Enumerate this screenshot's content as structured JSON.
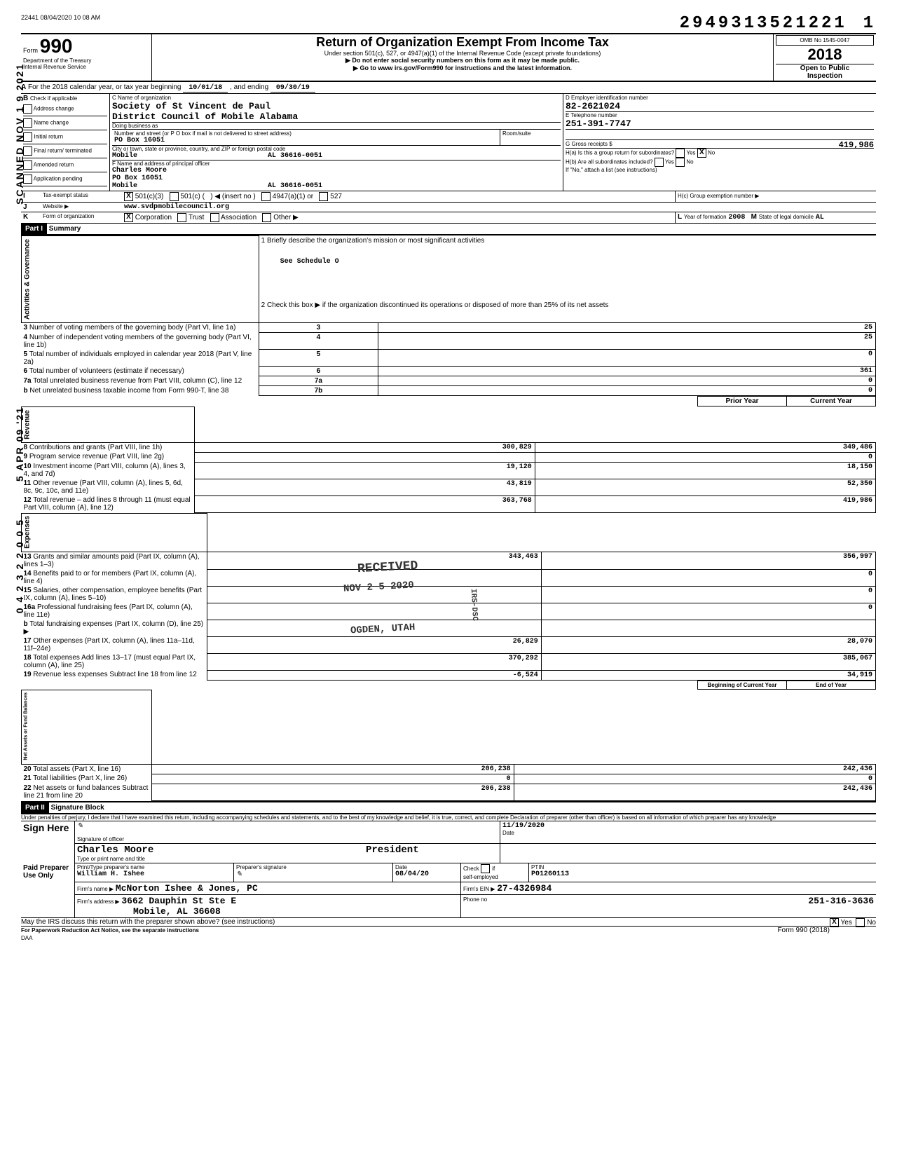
{
  "header": {
    "batch": "22441 08/04/2020 10 08 AM",
    "dln": "2949313521221",
    "dln_suffix": "1",
    "form_label": "Form",
    "form_number": "990",
    "title": "Return of Organization Exempt From Income Tax",
    "subtitle": "Under section 501(c), 527, or 4947(a)(1) of the Internal Revenue Code (except private foundations)",
    "warn1": "▶ Do not enter social security numbers on this form as it may be made public.",
    "warn2": "▶ Go to www irs.gov/Form990 for instructions and the latest information.",
    "dept": "Department of the Treasury",
    "irs": "Internal Revenue Service",
    "omb": "OMB No 1545-0047",
    "year": "2018",
    "open": "Open to Public",
    "inspection": "Inspection"
  },
  "sideStamps": {
    "scanned": "SCANNED NOV 1 9 2021",
    "apr": "5 APR 09 '21",
    "efile": "0 4 2 3 2 2 0 0 5"
  },
  "sectionA": {
    "label": "A",
    "text_prefix": "For the 2018 calendar year, or tax year beginning",
    "begin": "10/01/18",
    "mid": ", and ending",
    "end": "09/30/19"
  },
  "sectionB": {
    "label": "B",
    "check_label": "Check if applicable",
    "opts": [
      "Address change",
      "Name change",
      "Initial return",
      "Final return/ terminated",
      "Amended return",
      "Application pending"
    ]
  },
  "sectionC": {
    "label_name": "C Name of organization",
    "org_name": "Society of St Vincent de Paul",
    "org_name2": "District Council of Mobile Alabama",
    "dba_label": "Doing business as",
    "street_label": "Number and street (or P O box if mail is not delivered to street address)",
    "street": "PO Box 16051",
    "room_label": "Room/suite",
    "city_label": "City or town, state or province, country, and ZIP or foreign postal code",
    "city": "Mobile",
    "citystate": "AL 36616-0051"
  },
  "sectionD": {
    "label": "D Employer identification number",
    "ein": "82-2621024"
  },
  "sectionE": {
    "label": "E Telephone number",
    "phone": "251-391-7747"
  },
  "sectionF": {
    "label": "F Name and address of principal officer",
    "name": "Charles Moore",
    "addr1": "PO Box 16051",
    "addr2": "Mobile",
    "addr_state": "AL 36616-0051"
  },
  "sectionG": {
    "label": "G Gross receipts $",
    "val": "419,986"
  },
  "sectionH": {
    "a": "H(a) Is this a group return for subordinates?",
    "b": "H(b) Are all subordinates included?",
    "note": "If \"No,\" attach a list (see instructions)",
    "c": "H(c) Group exemption number ▶",
    "yes": "Yes",
    "no": "No"
  },
  "sectionI": {
    "label": "I",
    "text": "Tax-exempt status",
    "opt1": "501(c)(3)",
    "opt2": "501(c) (",
    "insert": "◀ (insert no )",
    "opt3": "4947(a)(1) or",
    "opt4": "527"
  },
  "sectionJ": {
    "label": "J",
    "text": "Website ▶",
    "val": "www.svdpmobilecouncil.org"
  },
  "sectionK": {
    "label": "K",
    "text": "Form of organization",
    "opts": [
      "Corporation",
      "Trust",
      "Association",
      "Other ▶"
    ]
  },
  "sectionL": {
    "label": "L",
    "text": "Year of formation",
    "val": "2008"
  },
  "sectionM": {
    "label": "M",
    "text": "State of legal domicile",
    "val": "AL"
  },
  "part1": {
    "hdr": "Part I",
    "title": "Summary",
    "line1": "1  Briefly describe the organization's mission or most significant activities",
    "line1val": "See Schedule O",
    "line2": "2  Check this box ▶      if the organization discontinued its operations or disposed of more than 25% of its net assets",
    "governance_label": "Activities & Governance",
    "revenue_label": "Revenue",
    "expenses_label": "Expenses",
    "netassets_label": "Net Assets or Fund Balances",
    "rows_gov": [
      {
        "n": "3",
        "t": "Number of voting members of the governing body (Part VI, line 1a)",
        "box": "3",
        "v": "25"
      },
      {
        "n": "4",
        "t": "Number of independent voting members of the governing body (Part VI, line 1b)",
        "box": "4",
        "v": "25"
      },
      {
        "n": "5",
        "t": "Total number of individuals employed in calendar year 2018 (Part V, line 2a)",
        "box": "5",
        "v": "0"
      },
      {
        "n": "6",
        "t": "Total number of volunteers (estimate if necessary)",
        "box": "6",
        "v": "361"
      },
      {
        "n": "7a",
        "t": "Total unrelated business revenue from Part VIII, column (C), line 12",
        "box": "7a",
        "v": "0"
      },
      {
        "n": "b",
        "t": "Net unrelated business taxable income from Form 990-T, line 38",
        "box": "7b",
        "v": "0"
      }
    ],
    "col_prior": "Prior Year",
    "col_current": "Current Year",
    "rows_rev": [
      {
        "n": "8",
        "t": "Contributions and grants (Part VIII, line 1h)",
        "p": "300,829",
        "c": "349,486"
      },
      {
        "n": "9",
        "t": "Program service revenue (Part VIII, line 2g)",
        "p": "",
        "c": "0"
      },
      {
        "n": "10",
        "t": "Investment income (Part VIII, column (A), lines 3, 4, and 7d)",
        "p": "19,120",
        "c": "18,150"
      },
      {
        "n": "11",
        "t": "Other revenue (Part VIII, column (A), lines 5, 6d, 8c, 9c, 10c, and 11e)",
        "p": "43,819",
        "c": "52,350"
      },
      {
        "n": "12",
        "t": "Total revenue – add lines 8 through 11 (must equal Part VIII, column (A), line 12)",
        "p": "363,768",
        "c": "419,986"
      }
    ],
    "rows_exp": [
      {
        "n": "13",
        "t": "Grants and similar amounts paid (Part IX, column (A), lines 1–3)",
        "p": "343,463",
        "c": "356,997"
      },
      {
        "n": "14",
        "t": "Benefits paid to or for members (Part IX, column (A), line 4)",
        "p": "",
        "c": "0"
      },
      {
        "n": "15",
        "t": "Salaries, other compensation, employee benefits (Part IX, column (A), lines 5–10)",
        "p": "",
        "c": "0"
      },
      {
        "n": "16a",
        "t": "Professional fundraising fees (Part IX, column (A), line 11e)",
        "p": "",
        "c": "0"
      },
      {
        "n": "b",
        "t": "Total fundraising expenses (Part IX, column (D), line 25) ▶",
        "p": "",
        "c": ""
      },
      {
        "n": "17",
        "t": "Other expenses (Part IX, column (A), lines 11a–11d, 11f–24e)",
        "p": "26,829",
        "c": "28,070"
      },
      {
        "n": "18",
        "t": "Total expenses Add lines 13–17 (must equal Part IX, column (A), line 25)",
        "p": "370,292",
        "c": "385,067"
      },
      {
        "n": "19",
        "t": "Revenue less expenses  Subtract line 18 from line 12",
        "p": "-6,524",
        "c": "34,919"
      }
    ],
    "col_begin": "Beginning of Current Year",
    "col_end": "End of Year",
    "rows_net": [
      {
        "n": "20",
        "t": "Total assets (Part X, line 16)",
        "p": "206,238",
        "c": "242,436"
      },
      {
        "n": "21",
        "t": "Total liabilities (Part X, line 26)",
        "p": "0",
        "c": "0"
      },
      {
        "n": "22",
        "t": "Net assets or fund balances  Subtract line 21 from line 20",
        "p": "206,238",
        "c": "242,436"
      }
    ]
  },
  "part2": {
    "hdr": "Part II",
    "title": "Signature Block",
    "decl": "Under penalties of perjury, I declare that I have examined this return, including accompanying schedules and statements, and to the best of my knowledge and belief, it is true, correct, and complete  Declaration of preparer (other than officer) is based on all information of which preparer has any knowledge",
    "sign_here": "Sign Here",
    "sig_officer_label": "Signature of officer",
    "date_label": "Date",
    "officer_name": "Charles Moore",
    "officer_title": "President",
    "typed_label": "Type or print name and title",
    "sig_date": "11/19/2020",
    "paid": "Paid Preparer Use Only",
    "prep_name_label": "Print/Type preparer's name",
    "prep_name": "William H. Ishee",
    "prep_sig_label": "Preparer's signature",
    "prep_date_label": "Date",
    "prep_date": "08/04/20",
    "check_label": "Check",
    "if_label": "if",
    "self_emp": "self-employed",
    "ptin_label": "PTIN",
    "ptin": "P01260113",
    "firm_name_label": "Firm's name ▶",
    "firm_name": "McNorton Ishee & Jones, PC",
    "firm_ein_label": "Firm's EIN ▶",
    "firm_ein": "27-4326984",
    "firm_addr_label": "Firm's address ▶",
    "firm_addr1": "3662 Dauphin St Ste E",
    "firm_addr2": "Mobile, AL  36608",
    "phone_label": "Phone no",
    "firm_phone": "251-316-3636",
    "discuss": "May the IRS discuss this return with the preparer shown above? (see instructions)",
    "paperwork": "For Paperwork Reduction Act Notice, see the separate instructions",
    "daa": "DAA",
    "form_foot": "Form 990 (2018)"
  },
  "stamps": {
    "received": "RECEIVED",
    "received_date": "NOV 2 5 2020",
    "ogden": "OGDEN, UTAH",
    "dsc": "IRS-DSC"
  }
}
